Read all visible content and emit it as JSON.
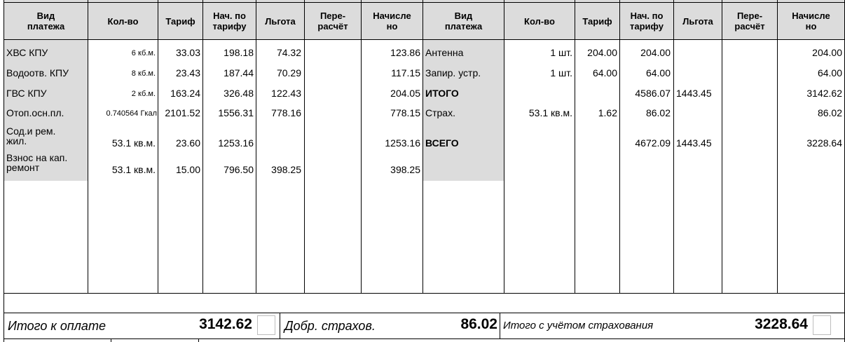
{
  "headers": [
    "Вид\nплатежа",
    "Кол-во",
    "Тариф",
    "Нач. по\nтарифу",
    "Льгота",
    "Пере-\nрасчёт",
    "Начисле\nно",
    "Вид\nплатежа",
    "Кол-во",
    "Тариф",
    "Нач. по\nтарифу",
    "Льгота",
    "Пере-\nрасчёт",
    "Начисле\nно"
  ],
  "left_rows": [
    {
      "name": "ХВС КПУ",
      "qty": "6 кб.м.",
      "tariff": "33.03",
      "accrued_tariff": "198.18",
      "benefit": "74.32",
      "recalc": "",
      "accrued": "123.86"
    },
    {
      "name": "Водоотв. КПУ",
      "qty": "8 кб.м.",
      "tariff": "23.43",
      "accrued_tariff": "187.44",
      "benefit": "70.29",
      "recalc": "",
      "accrued": "117.15"
    },
    {
      "name": "ГВС КПУ",
      "qty": "2 кб.м.",
      "tariff": "163.24",
      "accrued_tariff": "326.48",
      "benefit": "122.43",
      "recalc": "",
      "accrued": "204.05"
    },
    {
      "name": "Отоп.осн.пл.",
      "qty": "0.740564 Гкал",
      "tariff": "2101.52",
      "accrued_tariff": "1556.31",
      "benefit": "778.16",
      "recalc": "",
      "accrued": "778.15"
    },
    {
      "name": "Сод.и рем.\nжил.",
      "qty": "53.1 кв.м.",
      "tariff": "23.60",
      "accrued_tariff": "1253.16",
      "benefit": "",
      "recalc": "",
      "accrued": "1253.16"
    },
    {
      "name": "Взнос на кап.\nремонт",
      "qty": "53.1 кв.м.",
      "tariff": "15.00",
      "accrued_tariff": "796.50",
      "benefit": "398.25",
      "recalc": "",
      "accrued": "398.25"
    }
  ],
  "right_rows": [
    {
      "name": "Антенна",
      "qty": "1 шт.",
      "tariff": "204.00",
      "accrued_tariff": "204.00",
      "benefit": "",
      "recalc": "",
      "accrued": "204.00"
    },
    {
      "name": "Запир. устр.",
      "qty": "1 шт.",
      "tariff": "64.00",
      "accrued_tariff": "64.00",
      "benefit": "",
      "recalc": "",
      "accrued": "64.00"
    },
    {
      "name": "ИТОГО",
      "qty": "",
      "tariff": "",
      "accrued_tariff": "4586.07",
      "benefit": "1443.45",
      "recalc": "",
      "accrued": "3142.62"
    },
    {
      "name": "Страх.",
      "qty": "53.1 кв.м.",
      "tariff": "1.62",
      "accrued_tariff": "86.02",
      "benefit": "",
      "recalc": "",
      "accrued": "86.02"
    },
    {
      "name": "ВСЕГО",
      "qty": "",
      "tariff": "",
      "accrued_tariff": "4672.09",
      "benefit": "1443.45",
      "recalc": "",
      "accrued": "3228.64"
    }
  ],
  "footer": {
    "total_label": "Итого к оплате",
    "total_value": "3142.62",
    "insurance_label": "Добр. страхов.",
    "insurance_value": "86.02",
    "grand_label": "Итого с учётом страхования",
    "grand_value": "3228.64"
  }
}
